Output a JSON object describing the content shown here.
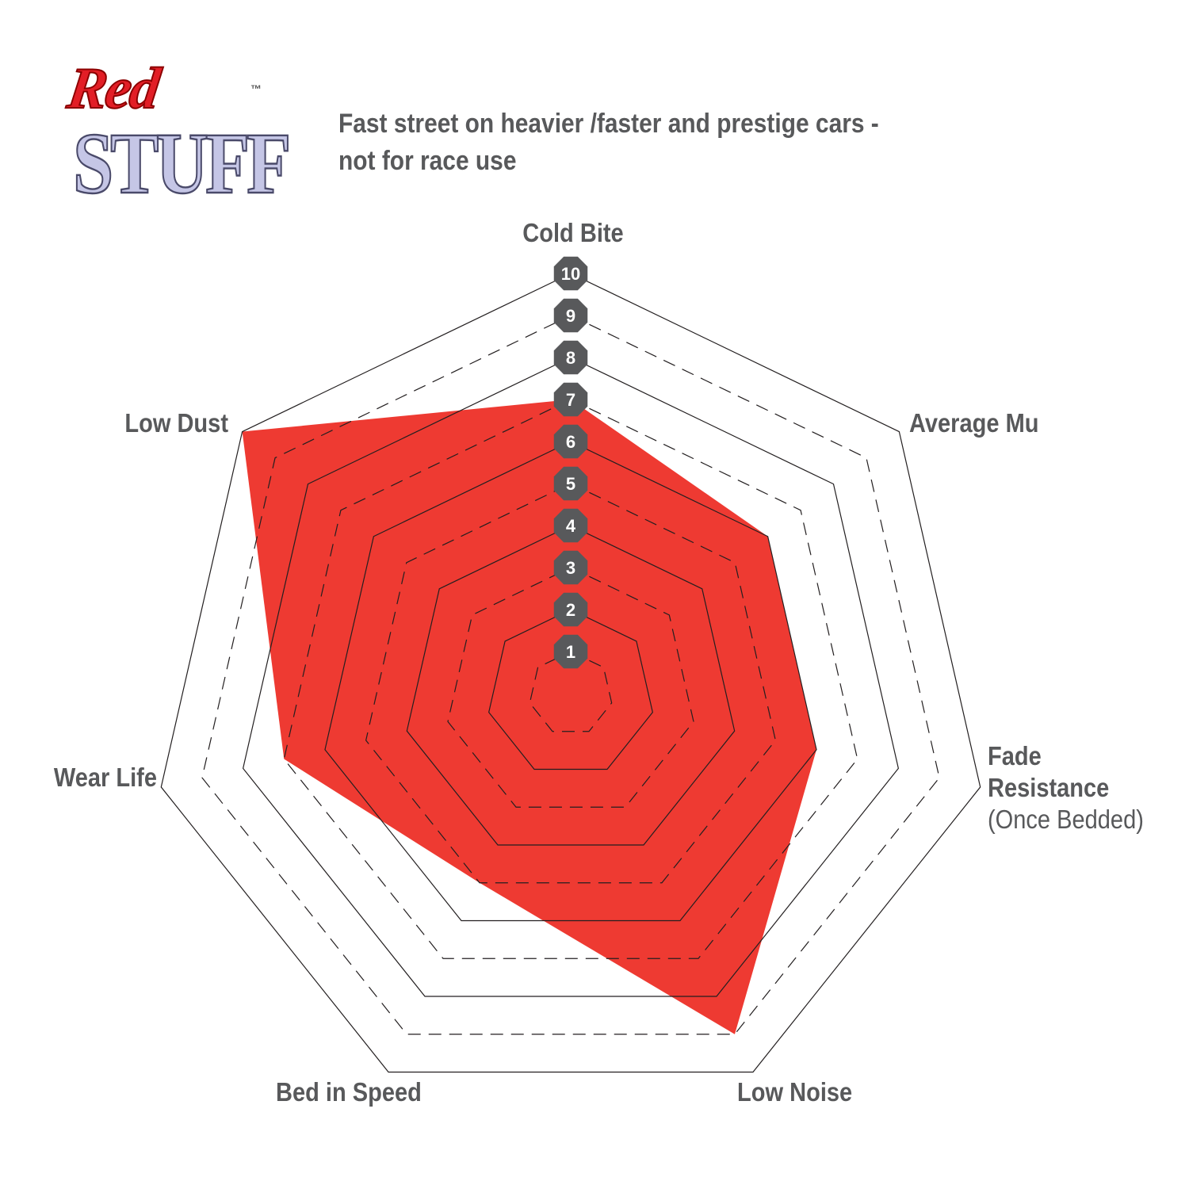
{
  "logo": {
    "line1": "Red",
    "line2": "STUFF",
    "tm": "™"
  },
  "subtitle": [
    "Fast street on heavier /faster and prestige cars -",
    "not for race use"
  ],
  "colors": {
    "fill": "#ee3a32",
    "text": "#58595b",
    "badge": "#58595b",
    "grid": "#231f20"
  },
  "chart_data": {
    "type": "radar",
    "title": "",
    "axes": [
      "Cold Bite",
      "Average Mu",
      "Fade Resistance (Once Bedded)",
      "Low Noise",
      "Bed in Speed",
      "Wear Life",
      "Low Dust"
    ],
    "axis_label_lines": [
      [
        "Cold Bite"
      ],
      [
        "Average Mu"
      ],
      [
        "Fade",
        "Resistance",
        "(Once Bedded)"
      ],
      [
        "Low Noise"
      ],
      [
        "Bed in Speed"
      ],
      [
        "Wear Life"
      ],
      [
        "Low Dust"
      ]
    ],
    "values": [
      7,
      6,
      6,
      9,
      5,
      7,
      10
    ],
    "range": [
      0,
      10
    ],
    "ticks": [
      "1",
      "2",
      "3",
      "4",
      "5",
      "6",
      "7",
      "8",
      "9",
      "10"
    ],
    "grid": "solid on even rings, dashed on odd rings"
  }
}
